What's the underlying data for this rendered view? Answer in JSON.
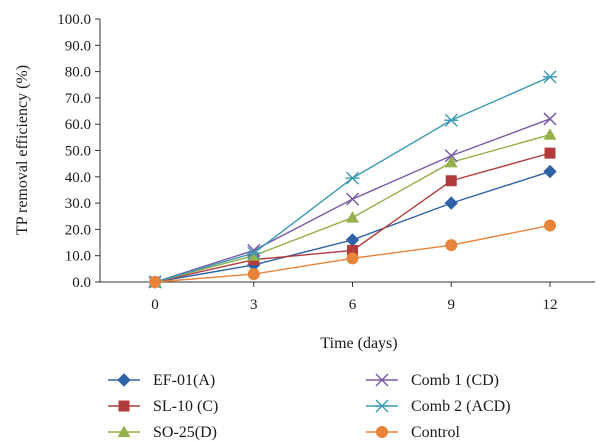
{
  "chart_data": {
    "type": "line",
    "xlabel": "Time (days)",
    "ylabel": "TP removal efficiency (%)",
    "x": [
      0,
      3,
      6,
      9,
      12
    ],
    "x_tick_labels": [
      "0",
      "3",
      "6",
      "9",
      "12"
    ],
    "ylim": [
      0,
      100
    ],
    "y_tick_labels": [
      "0.0",
      "10.0",
      "20.0",
      "30.0",
      "40.0",
      "50.0",
      "60.0",
      "70.0",
      "80.0",
      "90.0",
      "100.0"
    ],
    "grid": false,
    "legend_position": "bottom",
    "series": [
      {
        "name": "EF-01(A)",
        "values": [
          0,
          6.5,
          16.0,
          30.0,
          42.0
        ],
        "color": "#2e63a8",
        "marker": "diamond-icon"
      },
      {
        "name": "SL-10 (C)",
        "values": [
          0,
          8.5,
          12.0,
          38.5,
          49.0
        ],
        "color": "#b23c3c",
        "marker": "square-icon"
      },
      {
        "name": "SO-25(D)",
        "values": [
          0,
          10.0,
          24.5,
          45.5,
          56.0
        ],
        "color": "#93b04a",
        "marker": "triangle-icon"
      },
      {
        "name": "Comb 1 (CD)",
        "values": [
          0,
          12.0,
          31.5,
          48.0,
          62.0
        ],
        "color": "#7a5aa6",
        "marker": "x-icon"
      },
      {
        "name": "Comb 2 (ACD)",
        "values": [
          0,
          11.0,
          39.5,
          61.5,
          78.0
        ],
        "color": "#3a9ab5",
        "marker": "asterisk-icon"
      },
      {
        "name": "Control",
        "values": [
          0,
          3.0,
          9.0,
          14.0,
          21.5
        ],
        "color": "#e8843a",
        "marker": "circle-icon"
      }
    ]
  }
}
